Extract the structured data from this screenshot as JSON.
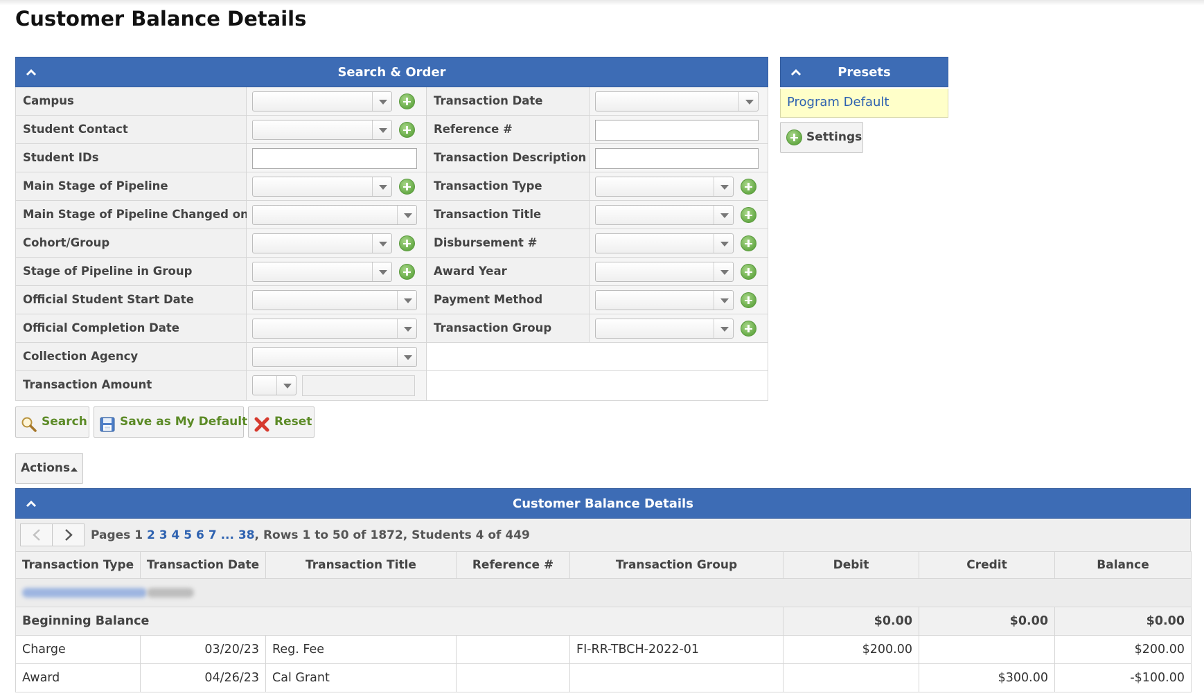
{
  "page_title": "Customer Balance Details",
  "search_panel": {
    "title": "Search & Order",
    "rows": [
      {
        "left_label": "Campus",
        "left_type": "select-plus",
        "right_label": "Transaction Date",
        "right_type": "select"
      },
      {
        "left_label": "Student Contact",
        "left_type": "select-plus",
        "right_label": "Reference #",
        "right_type": "text"
      },
      {
        "left_label": "Student IDs",
        "left_type": "text",
        "right_label": "Transaction Description",
        "right_type": "text"
      },
      {
        "left_label": "Main Stage of Pipeline",
        "left_type": "select-plus",
        "right_label": "Transaction Type",
        "right_type": "select-plus"
      },
      {
        "left_label": "Main Stage of Pipeline Changed on",
        "left_type": "select",
        "right_label": "Transaction Title",
        "right_type": "select-plus"
      },
      {
        "left_label": "Cohort/Group",
        "left_type": "select-plus",
        "right_label": "Disbursement #",
        "right_type": "select-plus"
      },
      {
        "left_label": "Stage of Pipeline in Group",
        "left_type": "select-plus",
        "right_label": "Award Year",
        "right_type": "select-plus"
      },
      {
        "left_label": "Official Student Start Date",
        "left_type": "select",
        "right_label": "Payment Method",
        "right_type": "select-plus"
      },
      {
        "left_label": "Official Completion Date",
        "left_type": "select",
        "right_label": "Transaction Group",
        "right_type": "select-plus"
      },
      {
        "left_label": "Collection Agency",
        "left_type": "select",
        "right_label": "",
        "right_type": "none"
      },
      {
        "left_label": "Transaction Amount",
        "left_type": "amount",
        "right_label": "",
        "right_type": "none"
      }
    ]
  },
  "buttons": {
    "search": "Search",
    "save_default": "Save as My Default",
    "reset": "Reset",
    "actions": "Actions"
  },
  "presets": {
    "title": "Presets",
    "item": "Program Default",
    "settings_label": "Settings"
  },
  "results": {
    "title": "Customer Balance Details",
    "pager": {
      "prefix": "Pages",
      "current_page": "1",
      "pages": [
        "2",
        "3",
        "4",
        "5",
        "6",
        "7",
        "...",
        "38"
      ],
      "summary": "Rows 1 to 50 of 1872, Students 4 of 449"
    },
    "columns": [
      "Transaction Type",
      "Transaction Date",
      "Transaction Title",
      "Reference #",
      "Transaction Group",
      "Debit",
      "Credit",
      "Balance"
    ],
    "beginning_balance": {
      "label": "Beginning Balance",
      "debit": "$0.00",
      "credit": "$0.00",
      "balance": "$0.00"
    },
    "rows": [
      {
        "type": "Charge",
        "date": "03/20/23",
        "title": "Reg. Fee",
        "reference": "",
        "group": "FI-RR-TBCH-2022-01",
        "debit": "$200.00",
        "credit": "",
        "balance": "$200.00"
      },
      {
        "type": "Award",
        "date": "04/26/23",
        "title": "Cal Grant",
        "reference": "",
        "group": "",
        "debit": "",
        "credit": "$300.00",
        "balance": "-$100.00"
      }
    ]
  },
  "colors": {
    "header_blue": "#3d6cb5",
    "link_blue": "#2e62b0",
    "preset_bg": "#ffffc9",
    "button_green_text": "#5b8a26",
    "add_icon_green": "#67ab47"
  }
}
